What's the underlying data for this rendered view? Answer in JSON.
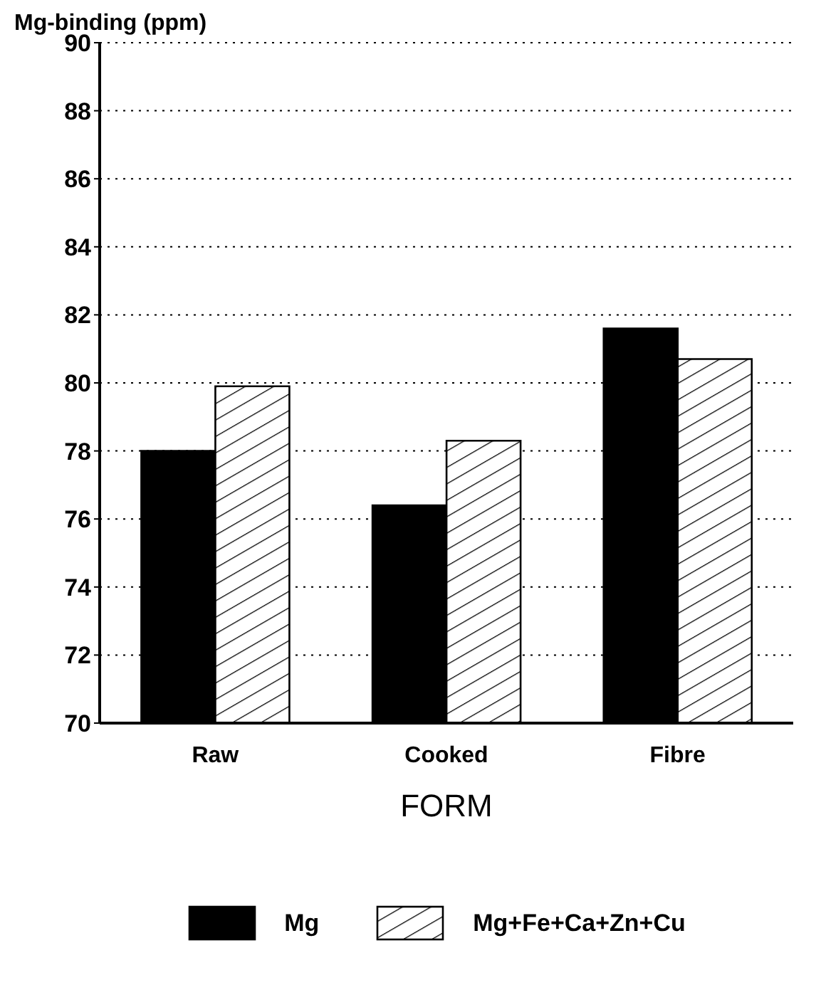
{
  "chart_data": {
    "type": "bar",
    "ylabel": "Mg-binding (ppm)",
    "xlabel": "FORM",
    "categories": [
      "Raw",
      "Cooked",
      "Fibre"
    ],
    "series": [
      {
        "name": "Mg",
        "color": "#000000",
        "values": [
          78.0,
          76.4,
          81.6
        ]
      },
      {
        "name": "Mg+Fe+Ca+Zn+Cu",
        "color": "#000000",
        "values": [
          79.9,
          78.3,
          80.7
        ]
      }
    ],
    "ylim": [
      70,
      90
    ],
    "yticks": [
      70,
      72,
      74,
      76,
      78,
      80,
      82,
      84,
      86,
      88,
      90
    ],
    "grid": "y",
    "legend": "bottom"
  }
}
